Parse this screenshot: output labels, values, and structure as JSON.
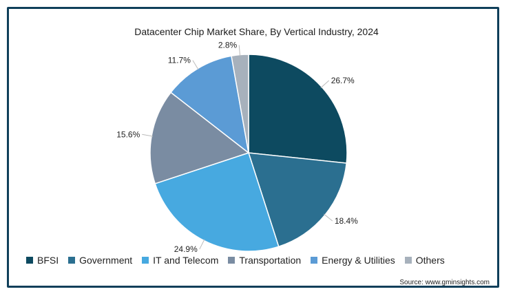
{
  "title": "Datacenter Chip Market Share, By Vertical Industry, 2024",
  "source": "Source: www.gminsights.com",
  "chart_data": {
    "type": "pie",
    "title": "Datacenter Chip Market Share, By Vertical Industry, 2024",
    "categories": [
      "BFSI",
      "Government",
      "IT and Telecom",
      "Transportation",
      "Energy & Utilities",
      "Others"
    ],
    "values": [
      26.7,
      18.4,
      24.9,
      15.6,
      11.7,
      2.8
    ],
    "labels": [
      "26.7%",
      "18.4%",
      "24.9%",
      "15.6%",
      "11.7%",
      "2.8%"
    ],
    "colors": [
      "#0d4a60",
      "#2b6f90",
      "#47a9e0",
      "#7a8ca2",
      "#5b9bd5",
      "#a7b1bc"
    ],
    "legend": "bottom",
    "unit": "%"
  }
}
